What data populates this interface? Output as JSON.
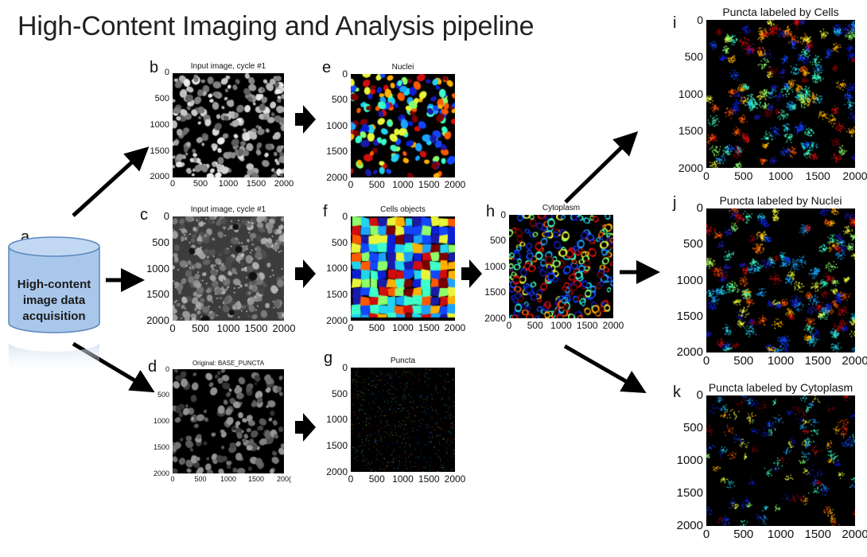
{
  "title": "High-Content Imaging and Analysis pipeline",
  "source": {
    "letter": "a",
    "label_lines": [
      "High-content",
      "image data",
      "acquisition"
    ],
    "fill_color": "#a9c7ea",
    "stroke_color": "#5a87bf"
  },
  "panels": [
    {
      "key": "b",
      "letter": "b",
      "title": "Input image, cycle #1",
      "style": "gray_nuclei",
      "y_ticks": [
        "0",
        "500",
        "1000",
        "1500",
        "2000"
      ],
      "x_ticks": [
        "0",
        "500",
        "1000",
        "1500",
        "2000"
      ]
    },
    {
      "key": "c",
      "letter": "c",
      "title": "Input image, cycle #1",
      "style": "gray_soft",
      "y_ticks": [
        "0",
        "500",
        "1000",
        "1500",
        "2000"
      ],
      "x_ticks": [
        "0",
        "500",
        "1000",
        "1500",
        "2000"
      ]
    },
    {
      "key": "d",
      "letter": "d",
      "title": "Original: BASE_PUNCTA",
      "style": "gray_dark",
      "y_ticks": [
        "0",
        "500",
        "1000",
        "1500",
        "2000"
      ],
      "x_ticks": [
        "0",
        "500",
        "1000",
        "1500",
        "200("
      ]
    },
    {
      "key": "e",
      "letter": "e",
      "title": "Nuclei",
      "style": "color_nuclei",
      "y_ticks": [
        "0",
        "500",
        "1000",
        "1500",
        "2000"
      ],
      "x_ticks": [
        "0",
        "500",
        "1000",
        "1500",
        "2000"
      ]
    },
    {
      "key": "f",
      "letter": "f",
      "title": "Cells objects",
      "style": "color_cells",
      "y_ticks": [
        "0",
        "500",
        "1000",
        "1500",
        "2000"
      ],
      "x_ticks": [
        "0",
        "500",
        "1000",
        "1500",
        "2000"
      ]
    },
    {
      "key": "g",
      "letter": "g",
      "title": "Puncta",
      "style": "puncta",
      "y_ticks": [
        "0",
        "500",
        "1000",
        "1500",
        "2000"
      ],
      "x_ticks": [
        "0",
        "500",
        "1000",
        "1500",
        "2000"
      ]
    },
    {
      "key": "h",
      "letter": "h",
      "title": "Cytoplasm",
      "style": "cytoplasm",
      "y_ticks": [
        "0",
        "500",
        "1000",
        "1500",
        "2000"
      ],
      "x_ticks": [
        "0",
        "500",
        "1000",
        "1500",
        "2000"
      ]
    },
    {
      "key": "i",
      "letter": "i",
      "title": "Puncta labeled by Cells",
      "style": "puncta_cells",
      "y_ticks": [
        "0",
        "500",
        "1000",
        "1500",
        "2000"
      ],
      "x_ticks": [
        "0",
        "500",
        "1000",
        "1500",
        "2000"
      ]
    },
    {
      "key": "j",
      "letter": "j",
      "title": "Puncta labeled by Nuclei",
      "style": "puncta_nuclei",
      "y_ticks": [
        "0",
        "500",
        "1000",
        "1500",
        "2000"
      ],
      "x_ticks": [
        "0",
        "500",
        "1000",
        "1500",
        "2000"
      ]
    },
    {
      "key": "k",
      "letter": "k",
      "title": "Puncta labeled by Cytoplasm",
      "style": "puncta_cyto",
      "y_ticks": [
        "0",
        "500",
        "1000",
        "1500",
        "2000"
      ],
      "x_ticks": [
        "0",
        "500",
        "1000",
        "1500",
        "2000"
      ]
    }
  ],
  "palette": [
    "#0a1fd6",
    "#1246ff",
    "#1aa3ff",
    "#22d4f0",
    "#3dffc8",
    "#8dff6a",
    "#e8f53a",
    "#ffb000",
    "#ff5a00",
    "#d10d0d",
    "#7a0000",
    "#1a1aa8"
  ]
}
